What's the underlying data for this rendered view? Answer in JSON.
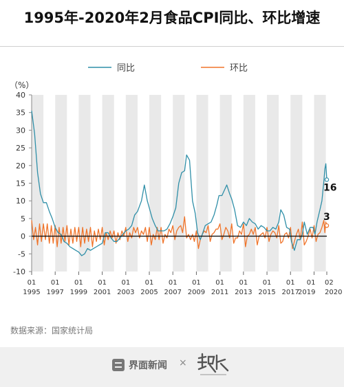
{
  "title": "1995年-2020年2月食品CPI同比、环比增速",
  "source": "数据来源：国家统计局",
  "footer": {
    "logo_left_text": "界面新闻",
    "times": "×"
  },
  "colors": {
    "yoy": "#2f8fa8",
    "mom": "#f0742a",
    "band": "#e9e9e9",
    "zero": "#111111"
  },
  "chart_data": {
    "type": "line",
    "unit_label": "（%）",
    "ylim": [
      -10,
      40
    ],
    "yticks": [
      -10,
      -5,
      0,
      5,
      10,
      15,
      20,
      25,
      30,
      35,
      40
    ],
    "x_months": [
      1995.0,
      2020.083
    ],
    "xticks": [
      {
        "month": "01",
        "year": "1995",
        "t": 1995.0
      },
      {
        "month": "01",
        "year": "1997",
        "t": 1997.0
      },
      {
        "month": "01",
        "year": "1999",
        "t": 1999.0
      },
      {
        "month": "01",
        "year": "2001",
        "t": 2001.0
      },
      {
        "month": "01",
        "year": "2003",
        "t": 2003.0
      },
      {
        "month": "01",
        "year": "2005",
        "t": 2005.0
      },
      {
        "month": "01",
        "year": "2007",
        "t": 2007.0
      },
      {
        "month": "01",
        "year": "2009",
        "t": 2009.0
      },
      {
        "month": "01",
        "year": "2011",
        "t": 2011.0
      },
      {
        "month": "01",
        "year": "2013",
        "t": 2013.0
      },
      {
        "month": "01",
        "year": "2015",
        "t": 2015.0
      },
      {
        "month": "01",
        "year": "2017",
        "t": 2017.0
      },
      {
        "month": "01",
        "year": "2019",
        "t": 2019.0
      },
      {
        "month": "02",
        "year": "2020",
        "t": 2020.083
      }
    ],
    "series": [
      {
        "name": "同比",
        "color": "#2f8fa8",
        "points": [
          [
            1995.0,
            35.5
          ],
          [
            1995.25,
            29.0
          ],
          [
            1995.5,
            18.0
          ],
          [
            1995.75,
            12.0
          ],
          [
            1996.0,
            9.5
          ],
          [
            1996.25,
            9.5
          ],
          [
            1996.5,
            7.0
          ],
          [
            1996.75,
            5.0
          ],
          [
            1997.0,
            2.5
          ],
          [
            1997.25,
            1.0
          ],
          [
            1997.5,
            0.5
          ],
          [
            1997.75,
            -1.5
          ],
          [
            1998.0,
            -2.0
          ],
          [
            1998.25,
            -3.0
          ],
          [
            1998.5,
            -3.5
          ],
          [
            1998.75,
            -4.0
          ],
          [
            1999.0,
            -4.5
          ],
          [
            1999.25,
            -5.5
          ],
          [
            1999.5,
            -5.0
          ],
          [
            1999.75,
            -3.5
          ],
          [
            2000.0,
            -4.0
          ],
          [
            2000.25,
            -3.5
          ],
          [
            2000.5,
            -3.0
          ],
          [
            2000.75,
            -2.5
          ],
          [
            2001.0,
            -2.0
          ],
          [
            2001.25,
            1.0
          ],
          [
            2001.5,
            1.0
          ],
          [
            2001.75,
            -0.5
          ],
          [
            2002.0,
            -1.5
          ],
          [
            2002.25,
            -1.5
          ],
          [
            2002.5,
            -0.5
          ],
          [
            2002.75,
            0.5
          ],
          [
            2003.0,
            1.5
          ],
          [
            2003.25,
            2.0
          ],
          [
            2003.5,
            3.0
          ],
          [
            2003.75,
            6.0
          ],
          [
            2004.0,
            7.0
          ],
          [
            2004.33,
            10.0
          ],
          [
            2004.58,
            14.5
          ],
          [
            2004.83,
            10.0
          ],
          [
            2005.0,
            8.0
          ],
          [
            2005.25,
            5.0
          ],
          [
            2005.5,
            3.0
          ],
          [
            2005.75,
            1.5
          ],
          [
            2006.0,
            1.5
          ],
          [
            2006.25,
            1.5
          ],
          [
            2006.5,
            2.0
          ],
          [
            2006.75,
            3.5
          ],
          [
            2007.0,
            5.5
          ],
          [
            2007.25,
            8.0
          ],
          [
            2007.5,
            15.0
          ],
          [
            2007.75,
            18.0
          ],
          [
            2008.0,
            18.5
          ],
          [
            2008.17,
            23.0
          ],
          [
            2008.42,
            21.5
          ],
          [
            2008.67,
            10.0
          ],
          [
            2008.9,
            6.5
          ],
          [
            2009.1,
            1.0
          ],
          [
            2009.33,
            -1.0
          ],
          [
            2009.5,
            0.5
          ],
          [
            2009.75,
            3.0
          ],
          [
            2010.0,
            3.5
          ],
          [
            2010.25,
            4.0
          ],
          [
            2010.5,
            6.0
          ],
          [
            2010.75,
            9.0
          ],
          [
            2010.92,
            11.5
          ],
          [
            2011.17,
            11.5
          ],
          [
            2011.58,
            14.5
          ],
          [
            2011.83,
            12.0
          ],
          [
            2012.0,
            10.5
          ],
          [
            2012.25,
            7.5
          ],
          [
            2012.5,
            3.0
          ],
          [
            2012.75,
            2.5
          ],
          [
            2013.0,
            4.0
          ],
          [
            2013.25,
            3.0
          ],
          [
            2013.5,
            5.0
          ],
          [
            2013.75,
            4.0
          ],
          [
            2014.0,
            3.5
          ],
          [
            2014.25,
            2.0
          ],
          [
            2014.5,
            3.0
          ],
          [
            2014.75,
            2.5
          ],
          [
            2015.0,
            1.5
          ],
          [
            2015.25,
            1.5
          ],
          [
            2015.5,
            2.5
          ],
          [
            2015.75,
            2.0
          ],
          [
            2016.0,
            4.0
          ],
          [
            2016.17,
            7.5
          ],
          [
            2016.42,
            6.0
          ],
          [
            2016.67,
            2.5
          ],
          [
            2016.92,
            2.0
          ],
          [
            2017.08,
            -1.5
          ],
          [
            2017.33,
            -4.0
          ],
          [
            2017.58,
            -1.0
          ],
          [
            2017.83,
            -1.0
          ],
          [
            2018.0,
            0.5
          ],
          [
            2018.17,
            4.0
          ],
          [
            2018.42,
            0.5
          ],
          [
            2018.67,
            2.5
          ],
          [
            2018.92,
            2.5
          ],
          [
            2019.08,
            0.5
          ],
          [
            2019.25,
            4.0
          ],
          [
            2019.5,
            7.5
          ],
          [
            2019.67,
            10.0
          ],
          [
            2019.83,
            15.5
          ],
          [
            2019.92,
            19.0
          ],
          [
            2020.0,
            20.5
          ],
          [
            2020.083,
            16.0
          ]
        ]
      },
      {
        "name": "环比",
        "color": "#f0742a",
        "points": [
          [
            1995.0,
            4.5
          ],
          [
            1995.17,
            -1.0
          ],
          [
            1995.33,
            2.5
          ],
          [
            1995.5,
            -2.5
          ],
          [
            1995.67,
            3.5
          ],
          [
            1995.83,
            -1.5
          ],
          [
            1996.0,
            3.5
          ],
          [
            1996.17,
            -1.0
          ],
          [
            1996.33,
            3.5
          ],
          [
            1996.5,
            -2.0
          ],
          [
            1996.67,
            3.0
          ],
          [
            1996.83,
            -2.0
          ],
          [
            1997.0,
            3.0
          ],
          [
            1997.17,
            -3.0
          ],
          [
            1997.33,
            2.5
          ],
          [
            1997.5,
            -2.0
          ],
          [
            1997.67,
            2.5
          ],
          [
            1997.83,
            -1.5
          ],
          [
            1998.0,
            3.0
          ],
          [
            1998.17,
            -2.5
          ],
          [
            1998.33,
            2.0
          ],
          [
            1998.5,
            -2.0
          ],
          [
            1998.67,
            2.5
          ],
          [
            1998.83,
            -1.5
          ],
          [
            1999.0,
            2.5
          ],
          [
            1999.17,
            -3.0
          ],
          [
            1999.33,
            2.5
          ],
          [
            1999.5,
            -2.0
          ],
          [
            1999.67,
            2.0
          ],
          [
            1999.83,
            -1.5
          ],
          [
            2000.0,
            2.5
          ],
          [
            2000.17,
            -3.0
          ],
          [
            2000.33,
            1.5
          ],
          [
            2000.5,
            -1.5
          ],
          [
            2000.67,
            2.0
          ],
          [
            2000.83,
            -1.0
          ],
          [
            2001.0,
            2.5
          ],
          [
            2001.17,
            -2.5
          ],
          [
            2001.33,
            1.0
          ],
          [
            2001.5,
            -1.0
          ],
          [
            2001.67,
            1.5
          ],
          [
            2001.83,
            -0.5
          ],
          [
            2002.0,
            1.5
          ],
          [
            2002.17,
            -2.0
          ],
          [
            2002.33,
            1.0
          ],
          [
            2002.5,
            -1.0
          ],
          [
            2002.67,
            1.5
          ],
          [
            2002.83,
            0.0
          ],
          [
            2003.0,
            2.5
          ],
          [
            2003.17,
            -1.5
          ],
          [
            2003.33,
            1.0
          ],
          [
            2003.5,
            -0.5
          ],
          [
            2003.67,
            2.5
          ],
          [
            2003.83,
            1.0
          ],
          [
            2004.0,
            2.5
          ],
          [
            2004.17,
            -0.5
          ],
          [
            2004.33,
            1.5
          ],
          [
            2004.5,
            0.5
          ],
          [
            2004.67,
            2.5
          ],
          [
            2004.83,
            -1.5
          ],
          [
            2005.0,
            2.5
          ],
          [
            2005.17,
            -2.5
          ],
          [
            2005.33,
            0.5
          ],
          [
            2005.5,
            -1.0
          ],
          [
            2005.67,
            2.5
          ],
          [
            2005.83,
            -1.0
          ],
          [
            2006.0,
            2.5
          ],
          [
            2006.17,
            -2.0
          ],
          [
            2006.33,
            0.5
          ],
          [
            2006.5,
            -0.5
          ],
          [
            2006.67,
            2.0
          ],
          [
            2006.83,
            1.0
          ],
          [
            2007.0,
            3.0
          ],
          [
            2007.17,
            -1.0
          ],
          [
            2007.33,
            1.5
          ],
          [
            2007.5,
            2.5
          ],
          [
            2007.67,
            3.0
          ],
          [
            2007.83,
            1.0
          ],
          [
            2008.0,
            5.5
          ],
          [
            2008.17,
            -0.5
          ],
          [
            2008.33,
            0.5
          ],
          [
            2008.5,
            -1.0
          ],
          [
            2008.67,
            0.5
          ],
          [
            2008.83,
            -1.5
          ],
          [
            2009.0,
            1.5
          ],
          [
            2009.17,
            -3.5
          ],
          [
            2009.33,
            -1.0
          ],
          [
            2009.5,
            0.5
          ],
          [
            2009.67,
            1.5
          ],
          [
            2009.83,
            1.0
          ],
          [
            2010.0,
            3.0
          ],
          [
            2010.17,
            -1.5
          ],
          [
            2010.33,
            0.5
          ],
          [
            2010.5,
            1.0
          ],
          [
            2010.67,
            2.0
          ],
          [
            2010.83,
            2.0
          ],
          [
            2011.0,
            3.5
          ],
          [
            2011.17,
            -1.0
          ],
          [
            2011.33,
            0.5
          ],
          [
            2011.5,
            2.5
          ],
          [
            2011.67,
            1.5
          ],
          [
            2011.83,
            -0.5
          ],
          [
            2012.0,
            3.5
          ],
          [
            2012.17,
            -2.0
          ],
          [
            2012.33,
            -0.5
          ],
          [
            2012.5,
            -0.5
          ],
          [
            2012.67,
            1.5
          ],
          [
            2012.83,
            0.5
          ],
          [
            2013.0,
            3.5
          ],
          [
            2013.17,
            -3.0
          ],
          [
            2013.33,
            0.0
          ],
          [
            2013.5,
            0.5
          ],
          [
            2013.67,
            2.0
          ],
          [
            2013.83,
            0.5
          ],
          [
            2014.0,
            2.5
          ],
          [
            2014.17,
            -2.5
          ],
          [
            2014.33,
            0.0
          ],
          [
            2014.5,
            0.5
          ],
          [
            2014.67,
            1.0
          ],
          [
            2014.83,
            -0.5
          ],
          [
            2015.0,
            2.5
          ],
          [
            2015.17,
            -1.5
          ],
          [
            2015.33,
            0.5
          ],
          [
            2015.5,
            1.5
          ],
          [
            2015.67,
            1.0
          ],
          [
            2015.83,
            -0.5
          ],
          [
            2016.0,
            3.0
          ],
          [
            2016.17,
            -2.0
          ],
          [
            2016.33,
            -1.5
          ],
          [
            2016.5,
            0.5
          ],
          [
            2016.67,
            1.0
          ],
          [
            2016.83,
            -0.5
          ],
          [
            2017.0,
            2.5
          ],
          [
            2017.17,
            -3.5
          ],
          [
            2017.33,
            -1.5
          ],
          [
            2017.5,
            0.5
          ],
          [
            2017.67,
            2.0
          ],
          [
            2017.83,
            -1.0
          ],
          [
            2018.0,
            4.0
          ],
          [
            2018.17,
            -2.5
          ],
          [
            2018.33,
            -1.5
          ],
          [
            2018.5,
            0.0
          ],
          [
            2018.67,
            2.0
          ],
          [
            2018.83,
            -0.5
          ],
          [
            2019.0,
            3.0
          ],
          [
            2019.17,
            -1.5
          ],
          [
            2019.33,
            0.5
          ],
          [
            2019.5,
            1.0
          ],
          [
            2019.67,
            2.5
          ],
          [
            2019.83,
            4.5
          ],
          [
            2019.92,
            1.0
          ],
          [
            2020.0,
            4.0
          ],
          [
            2020.083,
            3.0
          ]
        ]
      }
    ],
    "end_labels": [
      {
        "series": "同比",
        "text": "16",
        "value": 16.0
      },
      {
        "series": "环比",
        "text": "3",
        "value": 3.0
      }
    ]
  }
}
